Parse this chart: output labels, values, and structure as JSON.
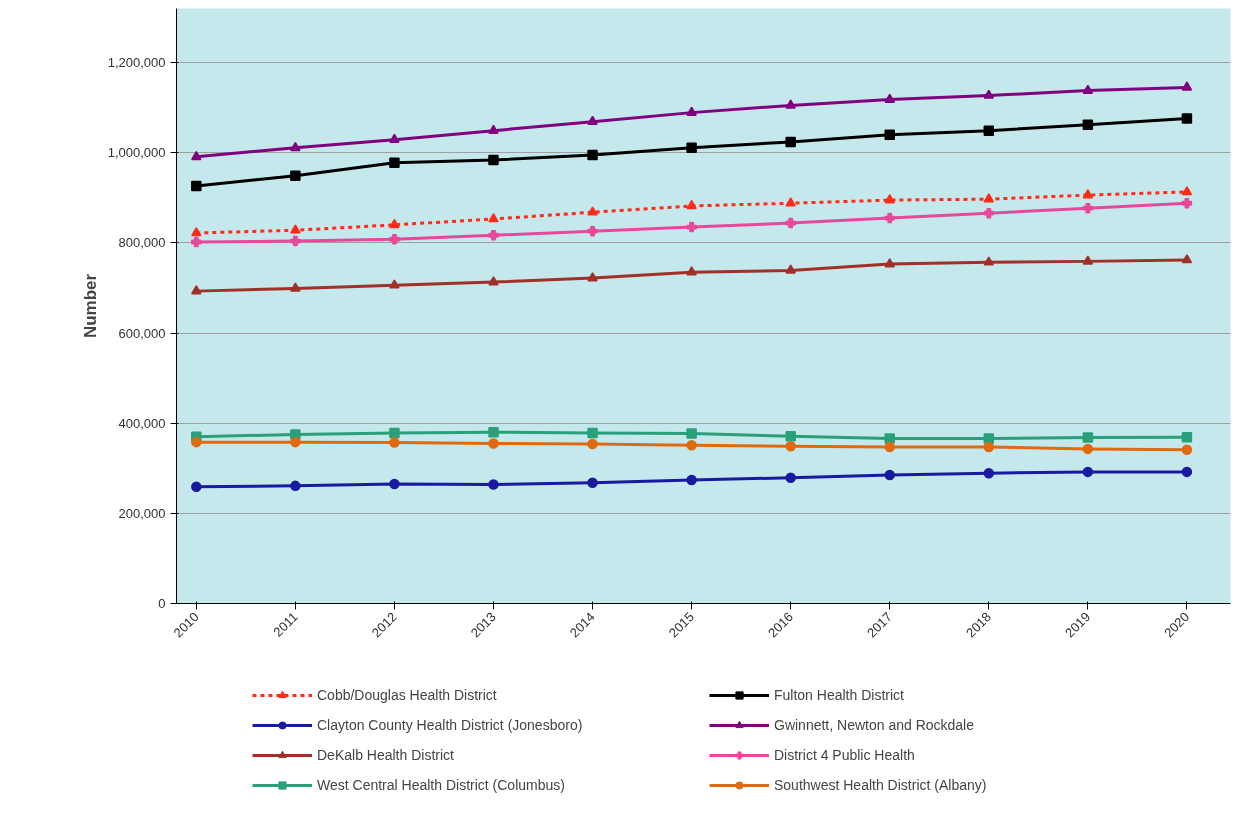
{
  "chart_data": {
    "type": "line",
    "ylabel": "Number",
    "categories": [
      "2010",
      "2011",
      "2012",
      "2013",
      "2014",
      "2015",
      "2016",
      "2017",
      "2018",
      "2019",
      "2020"
    ],
    "ylim": [
      0,
      1320000
    ],
    "yticks": [
      0,
      {
        "value": 200000,
        "label": "200,000"
      },
      {
        "value": 400000,
        "label": "400,000"
      },
      {
        "value": 600000,
        "label": "600,000"
      },
      {
        "value": 800000,
        "label": "800,000"
      },
      {
        "value": 1000000,
        "label": "1,000,000"
      },
      {
        "value": 1200000,
        "label": "1,200,000"
      }
    ],
    "grid": "y",
    "legend": "bottom",
    "series": [
      {
        "name": "Cobb/Douglas Health District",
        "color": "#ff2a1a",
        "marker": "triangle",
        "line_style": "dotted",
        "values": [
          822000,
          828000,
          840000,
          853000,
          868000,
          882000,
          888000,
          895000,
          897000,
          906000,
          913000
        ]
      },
      {
        "name": "Fulton Health District",
        "color": "#000000",
        "marker": "square",
        "line_style": "solid",
        "values": [
          926000,
          949000,
          978000,
          984000,
          995000,
          1011000,
          1024000,
          1040000,
          1049000,
          1062000,
          1076000
        ]
      },
      {
        "name": "Clayton County Health District (Jonesboro)",
        "color": "#1a1aa0",
        "marker": "circle",
        "line_style": "solid",
        "values": [
          259000,
          261000,
          265000,
          264000,
          268000,
          274000,
          279000,
          285000,
          289000,
          292000,
          292000
        ]
      },
      {
        "name": "Gwinnett, Newton and Rockdale",
        "color": "#800080",
        "marker": "triangle",
        "line_style": "solid",
        "values": [
          991000,
          1011000,
          1029000,
          1049000,
          1069000,
          1089000,
          1105000,
          1118000,
          1127000,
          1138000,
          1145000
        ]
      },
      {
        "name": "DeKalb Health District",
        "color": "#a03028",
        "marker": "triangle",
        "line_style": "solid",
        "values": [
          693000,
          699000,
          706000,
          713000,
          722000,
          735000,
          739000,
          753000,
          757000,
          759000,
          762000
        ]
      },
      {
        "name": "District 4 Public Health",
        "color": "#e8489a",
        "marker": "cross",
        "line_style": "solid",
        "values": [
          802000,
          804000,
          808000,
          817000,
          826000,
          835000,
          844000,
          855000,
          866000,
          877000,
          888000
        ]
      },
      {
        "name": "West Central Health District (Columbus)",
        "color": "#2aa07a",
        "marker": "square",
        "line_style": "solid",
        "values": [
          370000,
          375000,
          378000,
          380000,
          378000,
          377000,
          371000,
          366000,
          366000,
          368000,
          369000
        ]
      },
      {
        "name": "Southwest Health District (Albany)",
        "color": "#e06a10",
        "marker": "circle",
        "line_style": "solid",
        "values": [
          358000,
          358000,
          357000,
          355000,
          354000,
          351000,
          349000,
          347000,
          347000,
          343000,
          341000
        ]
      }
    ]
  }
}
